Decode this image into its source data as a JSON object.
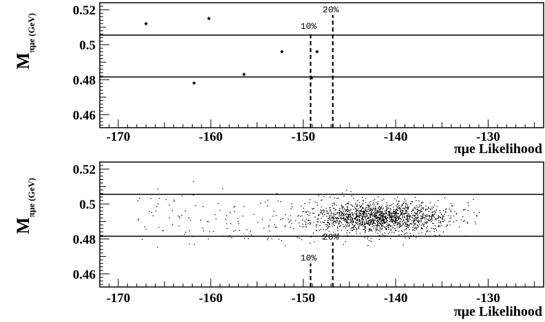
{
  "chart_data": [
    {
      "type": "scatter",
      "panel": "top",
      "xlabel": "πμe Likelihood",
      "ylabel_main": "M",
      "ylabel_sub": "πμe (GeV)",
      "xlim": [
        -172,
        -124
      ],
      "ylim": [
        0.4525,
        0.524
      ],
      "xticks": [
        -170,
        -160,
        -150,
        -140,
        -130
      ],
      "xtick_labels": [
        "-170",
        "-160",
        "-150",
        "-140",
        "-130"
      ],
      "yticks": [
        0.46,
        0.48,
        0.5,
        0.52
      ],
      "ytick_labels": [
        "0.46",
        "0.48",
        "0.5",
        "0.52"
      ],
      "mass_window": [
        0.4815,
        0.5055
      ],
      "cuts": [
        {
          "x": -149.2,
          "label": "10%"
        },
        {
          "x": -146.8,
          "label": "20%"
        }
      ],
      "marker": "star",
      "points": [
        {
          "x": -167.0,
          "y": 0.512
        },
        {
          "x": -161.8,
          "y": 0.478
        },
        {
          "x": -160.2,
          "y": 0.515
        },
        {
          "x": -156.4,
          "y": 0.483
        },
        {
          "x": -152.3,
          "y": 0.496
        },
        {
          "x": -149.1,
          "y": 0.481
        },
        {
          "x": -148.5,
          "y": 0.496
        }
      ]
    },
    {
      "type": "scatter",
      "panel": "bottom",
      "xlabel": "πμe Likelihood",
      "ylabel_main": "M",
      "ylabel_sub": "πμe (GeV)",
      "xlim": [
        -172,
        -124
      ],
      "ylim": [
        0.4525,
        0.524
      ],
      "xticks": [
        -170,
        -160,
        -150,
        -140,
        -130
      ],
      "xtick_labels": [
        "-170",
        "-160",
        "-150",
        "-140",
        "-130"
      ],
      "yticks": [
        0.46,
        0.48,
        0.5,
        0.52
      ],
      "ytick_labels": [
        "0.46",
        "0.48",
        "0.5",
        "0.52"
      ],
      "mass_window": [
        0.4815,
        0.5055
      ],
      "cuts": [
        {
          "x": -149.2,
          "label": "10%"
        },
        {
          "x": -146.8,
          "label": "20%"
        }
      ],
      "marker": "dot",
      "distribution": {
        "description_of_cluster": "dense cloud of background events",
        "n_points": 1800,
        "x_center": -141.5,
        "x_sigma": 3.6,
        "y_center": 0.4925,
        "y_sigma": 0.0045,
        "x_range": [
          -168,
          -131
        ],
        "y_range": [
          0.472,
          0.517
        ]
      }
    }
  ]
}
